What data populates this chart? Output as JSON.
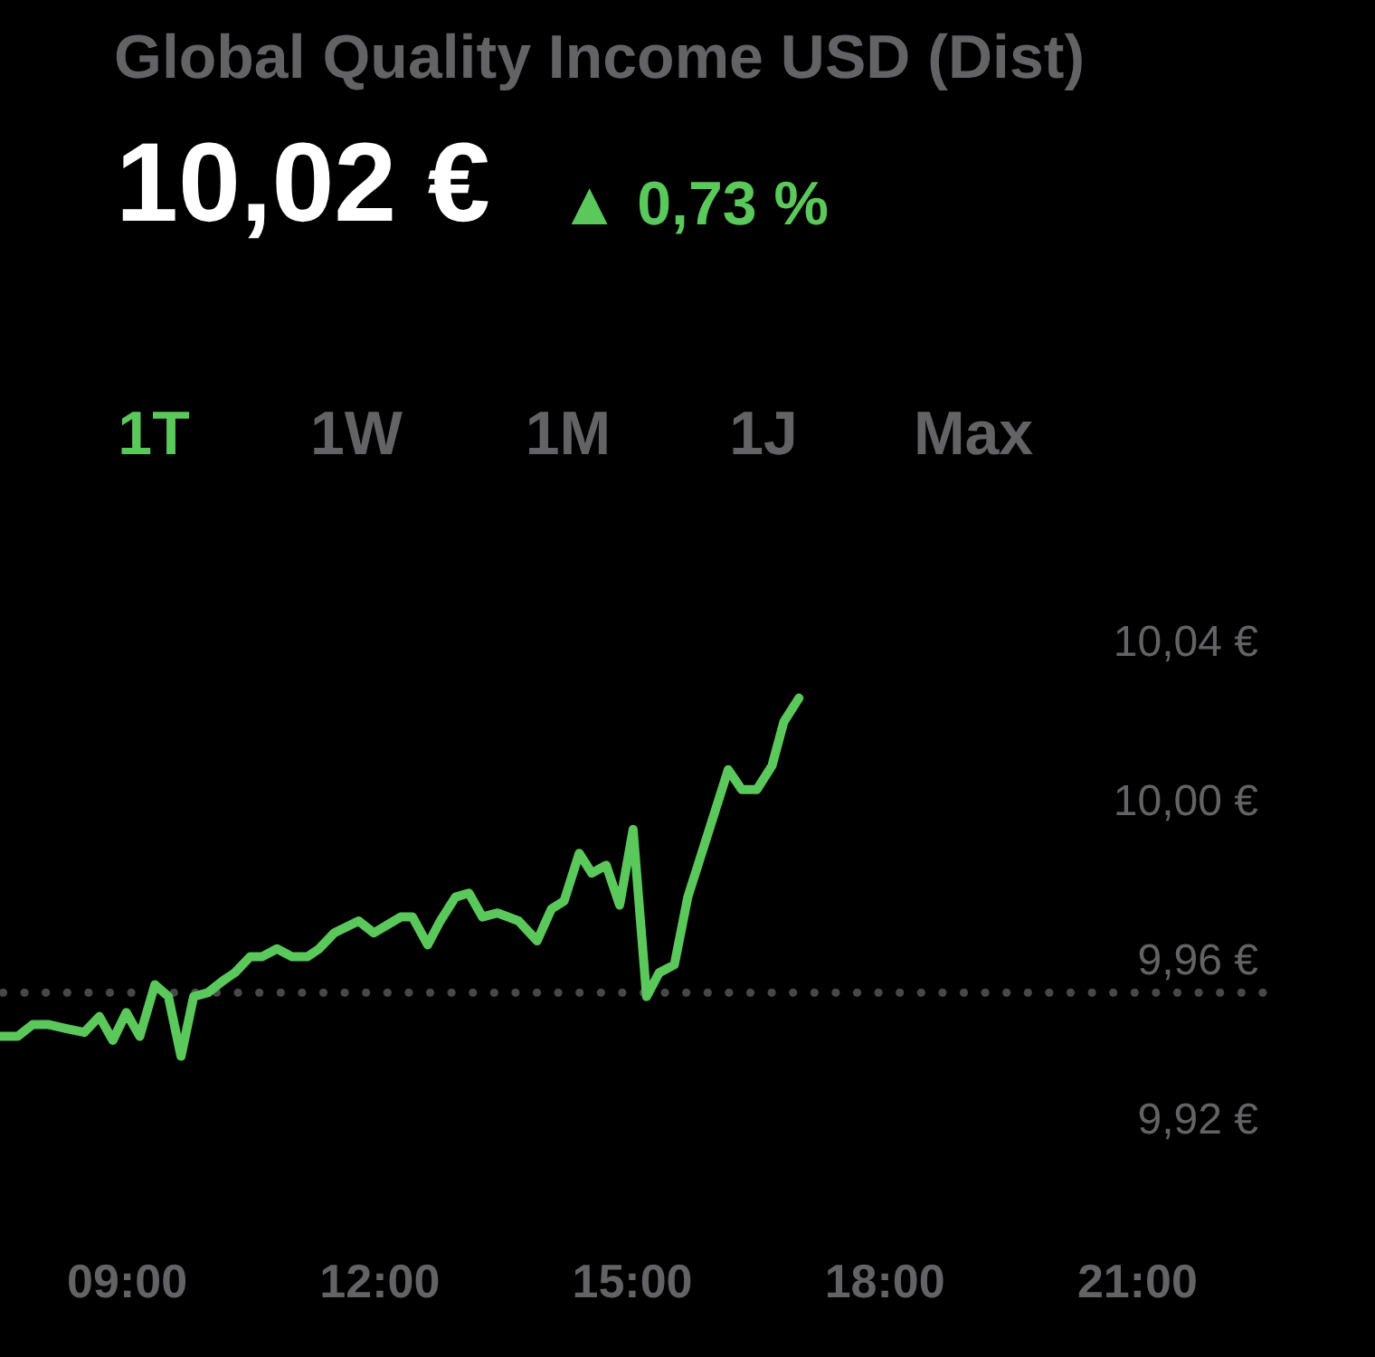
{
  "chart_data": {
    "type": "line",
    "title": "Global Quality Income USD (Dist)",
    "subtitle": "10,02 €",
    "annotations": [
      "▲ 0,73 %",
      "1T",
      "1W",
      "1M",
      "1J",
      "Max"
    ],
    "x": [
      7.5,
      7.71,
      7.89,
      8.07,
      8.28,
      8.5,
      8.68,
      8.84,
      9.0,
      9.16,
      9.34,
      9.5,
      9.65,
      9.8,
      9.97,
      10.15,
      10.29,
      10.47,
      10.61,
      10.79,
      10.97,
      11.15,
      11.29,
      11.47,
      11.76,
      11.94,
      12.26,
      12.4,
      12.58,
      12.73,
      12.91,
      13.07,
      13.23,
      13.41,
      13.66,
      13.88,
      14.05,
      14.2,
      14.38,
      14.53,
      14.7,
      14.86,
      15.02,
      15.18,
      15.33,
      15.51,
      15.67,
      15.85,
      16.03,
      16.15,
      16.31,
      16.49,
      16.67,
      16.81,
      16.99
    ],
    "series": [
      {
        "color": "#5ac85a",
        "values": [
          9.941,
          9.941,
          9.944,
          9.944,
          9.943,
          9.942,
          9.946,
          9.94,
          9.947,
          9.941,
          9.954,
          9.951,
          9.936,
          9.951,
          9.952,
          9.955,
          9.957,
          9.961,
          9.961,
          9.963,
          9.961,
          9.961,
          9.963,
          9.967,
          9.97,
          9.967,
          9.971,
          9.971,
          9.964,
          9.97,
          9.976,
          9.977,
          9.971,
          9.972,
          9.97,
          9.965,
          9.973,
          9.975,
          9.987,
          9.982,
          9.984,
          9.974,
          9.993,
          9.951,
          9.957,
          9.959,
          9.976,
          9.988,
          10.0,
          10.008,
          10.003,
          10.003,
          10.009,
          10.02,
          10.026
        ]
      }
    ],
    "xlim": [
      7.5,
      22.5
    ],
    "xticks": [
      {
        "value": 9,
        "label": "09:00"
      },
      {
        "value": 12,
        "label": "12:00"
      },
      {
        "value": 15,
        "label": "15:00"
      },
      {
        "value": 18,
        "label": "18:00"
      },
      {
        "value": 21,
        "label": "21:00"
      }
    ],
    "ylim": [
      9.92,
      10.04
    ],
    "yticks": [
      {
        "value": 9.92,
        "label": "9,92 €"
      },
      {
        "value": 9.96,
        "label": "9,96 €"
      },
      {
        "value": 10.0,
        "label": "10,00 €"
      },
      {
        "value": 10.04,
        "label": "10,04 €"
      }
    ],
    "ref_lines": [
      {
        "axis": "y",
        "value": 9.952,
        "color": "#48484a",
        "line_style": "dotted"
      }
    ],
    "line_style": "solid"
  }
}
